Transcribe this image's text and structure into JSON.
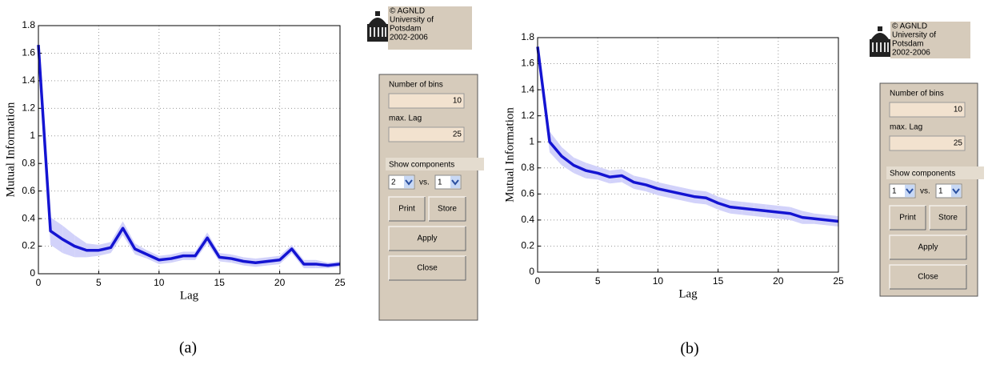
{
  "chart_data": [
    {
      "type": "line",
      "xlabel": "Lag",
      "ylabel": "Mutual Information",
      "x": [
        0,
        1,
        2,
        3,
        4,
        5,
        6,
        7,
        8,
        9,
        10,
        11,
        12,
        13,
        14,
        15,
        16,
        17,
        18,
        19,
        20,
        21,
        22,
        23,
        24,
        25
      ],
      "series": [
        {
          "color": "#1414d2",
          "band_color": "#d2d2fa",
          "values": [
            1.66,
            0.31,
            0.25,
            0.2,
            0.17,
            0.17,
            0.19,
            0.33,
            0.18,
            0.14,
            0.1,
            0.11,
            0.13,
            0.13,
            0.26,
            0.12,
            0.11,
            0.09,
            0.08,
            0.09,
            0.1,
            0.18,
            0.07,
            0.07,
            0.06,
            0.07
          ],
          "errors": [
            0.02,
            0.1,
            0.1,
            0.08,
            0.05,
            0.04,
            0.04,
            0.05,
            0.04,
            0.03,
            0.03,
            0.03,
            0.03,
            0.03,
            0.04,
            0.03,
            0.03,
            0.03,
            0.03,
            0.03,
            0.03,
            0.03,
            0.03,
            0.03,
            0.02,
            0.02
          ]
        }
      ],
      "xlim": [
        0,
        25
      ],
      "xticks": [
        0,
        5,
        10,
        15,
        20,
        25
      ],
      "ylim": [
        0,
        1.8
      ],
      "yticks": [
        0,
        0.2,
        0.4,
        0.6,
        0.8,
        1,
        1.2,
        1.4,
        1.6,
        1.8
      ],
      "grid": true
    },
    {
      "type": "line",
      "xlabel": "Lag",
      "ylabel": "Mutual Information",
      "x": [
        0,
        1,
        2,
        3,
        4,
        5,
        6,
        7,
        8,
        9,
        10,
        11,
        12,
        13,
        14,
        15,
        16,
        17,
        18,
        19,
        20,
        21,
        22,
        23,
        24,
        25
      ],
      "series": [
        {
          "color": "#1414d2",
          "band_color": "#d2d2fa",
          "values": [
            1.73,
            1.0,
            0.89,
            0.82,
            0.78,
            0.76,
            0.73,
            0.74,
            0.69,
            0.67,
            0.64,
            0.62,
            0.6,
            0.58,
            0.57,
            0.53,
            0.5,
            0.49,
            0.48,
            0.47,
            0.46,
            0.45,
            0.42,
            0.41,
            0.4,
            0.39
          ],
          "errors": [
            0.03,
            0.08,
            0.07,
            0.06,
            0.06,
            0.05,
            0.05,
            0.05,
            0.05,
            0.05,
            0.05,
            0.05,
            0.05,
            0.05,
            0.05,
            0.05,
            0.05,
            0.05,
            0.05,
            0.05,
            0.05,
            0.05,
            0.05,
            0.04,
            0.04,
            0.04
          ]
        }
      ],
      "xlim": [
        0,
        25
      ],
      "xticks": [
        0,
        5,
        10,
        15,
        20,
        25
      ],
      "ylim": [
        0,
        1.8
      ],
      "yticks": [
        0,
        0.2,
        0.4,
        0.6,
        0.8,
        1,
        1.2,
        1.4,
        1.6,
        1.8
      ],
      "grid": true
    }
  ],
  "panels": [
    {
      "caption": "(a)",
      "logo": [
        "© AGNLD",
        "University of",
        "Potsdam",
        "2002-2006"
      ],
      "controls": {
        "bins_label": "Number of bins",
        "bins": "10",
        "lag_label": "max. Lag",
        "lag": "25",
        "components_label": "Show components",
        "component_1": "2",
        "vs": "vs.",
        "component_2": "1",
        "buttons": [
          "Print",
          "Store",
          "Apply",
          "Close"
        ]
      }
    },
    {
      "caption": "(b)",
      "logo": [
        "© AGNLD",
        "University of",
        "Potsdam",
        "2002-2006"
      ],
      "controls": {
        "bins_label": "Number of bins",
        "bins": "10",
        "lag_label": "max. Lag",
        "lag": "25",
        "components_label": "Show components",
        "component_1": "1",
        "vs": "vs.",
        "component_2": "1",
        "buttons": [
          "Print",
          "Store",
          "Apply",
          "Close"
        ]
      }
    }
  ]
}
